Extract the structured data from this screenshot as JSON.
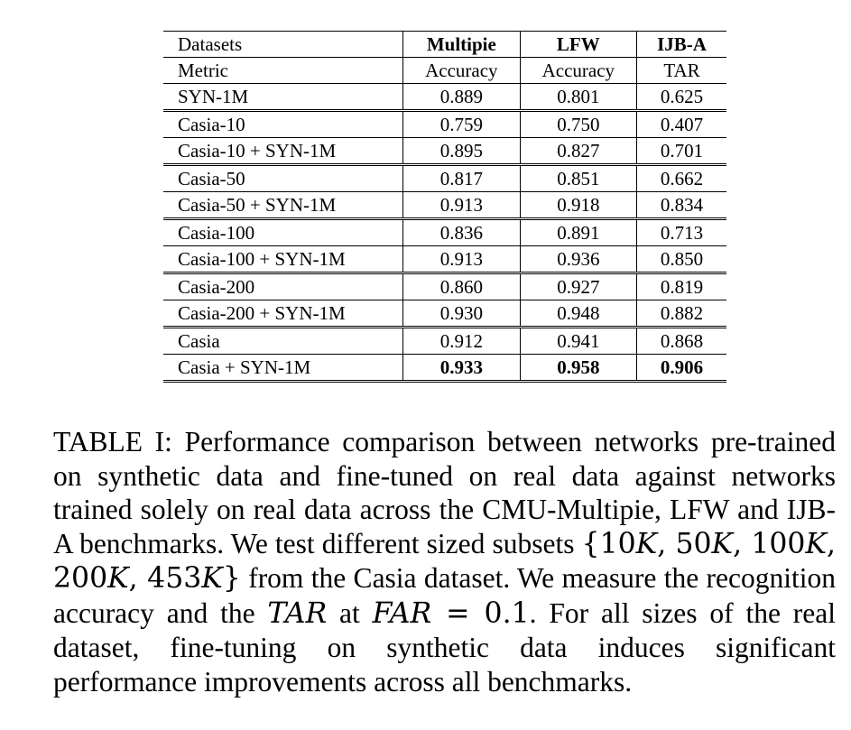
{
  "table": {
    "header": {
      "datasets_label": "Datasets",
      "columns": [
        "Multipie",
        "LFW",
        "IJB-A"
      ]
    },
    "metric_row": {
      "label": "Metric",
      "values": [
        "Accuracy",
        "Accuracy",
        "TAR"
      ]
    },
    "rows": [
      {
        "dataset": "SYN-1M",
        "multipie": "0.889",
        "lfw": "0.801",
        "ijba": "0.625"
      },
      {
        "dataset": "Casia-10",
        "multipie": "0.759",
        "lfw": "0.750",
        "ijba": "0.407"
      },
      {
        "dataset": "Casia-10 + SYN-1M",
        "multipie": "0.895",
        "lfw": "0.827",
        "ijba": "0.701"
      },
      {
        "dataset": "Casia-50",
        "multipie": "0.817",
        "lfw": "0.851",
        "ijba": "0.662"
      },
      {
        "dataset": "Casia-50 + SYN-1M",
        "multipie": "0.913",
        "lfw": "0.918",
        "ijba": "0.834"
      },
      {
        "dataset": "Casia-100",
        "multipie": "0.836",
        "lfw": "0.891",
        "ijba": "0.713"
      },
      {
        "dataset": "Casia-100 + SYN-1M",
        "multipie": "0.913",
        "lfw": "0.936",
        "ijba": "0.850"
      },
      {
        "dataset": "Casia-200",
        "multipie": "0.860",
        "lfw": "0.927",
        "ijba": "0.819"
      },
      {
        "dataset": "Casia-200 + SYN-1M",
        "multipie": "0.930",
        "lfw": "0.948",
        "ijba": "0.882"
      },
      {
        "dataset": "Casia",
        "multipie": "0.912",
        "lfw": "0.941",
        "ijba": "0.868"
      },
      {
        "dataset": "Casia + SYN-1M",
        "multipie": "0.933",
        "lfw": "0.958",
        "ijba": "0.906"
      }
    ]
  },
  "caption": {
    "part1": "TABLE I: Performance comparison between networks pre-trained on synthetic data and fine-tuned on real data against networks trained solely on real data across the CMU-Multipie, LFW and IJB-A benchmarks. We test different sized subsets ",
    "set_open": "{",
    "k1": "10",
    "k2": "50",
    "k3": "100",
    "k4": "200",
    "k5": "453",
    "k_letter": "K",
    "set_close": "}",
    "part2": " from the Casia dataset. We measure the recognition accuracy and the ",
    "tar": "TAR",
    "part3": " at ",
    "far": "FAR",
    "equals": " = ",
    "far_value": "0.1",
    "part4": ". For all sizes of the real dataset, fine-tuning on synthetic data induces significant performance improvements across all benchmarks."
  }
}
